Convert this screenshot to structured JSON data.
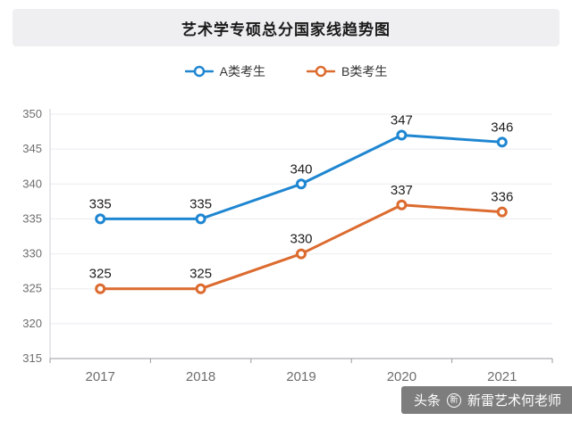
{
  "title": "艺术学专硕总分国家线趋势图",
  "watermark": {
    "brand": "头条",
    "name": "新雷艺术何老师"
  },
  "chart_data": {
    "type": "line",
    "title": "艺术学专硕总分国家线趋势图",
    "categories": [
      "2017",
      "2018",
      "2019",
      "2020",
      "2021"
    ],
    "series": [
      {
        "name": "A类考生",
        "color": "#1f86d1",
        "values": [
          335,
          335,
          340,
          347,
          346
        ]
      },
      {
        "name": "B类考生",
        "color": "#dc6b2f",
        "values": [
          325,
          325,
          330,
          337,
          336
        ]
      }
    ],
    "xlabel": "",
    "ylabel": "",
    "ylim": [
      315,
      350
    ],
    "yticks": [
      315,
      320,
      325,
      330,
      335,
      340,
      345,
      350
    ],
    "grid": true,
    "legend_position": "top",
    "marker": "hollow-circle"
  }
}
